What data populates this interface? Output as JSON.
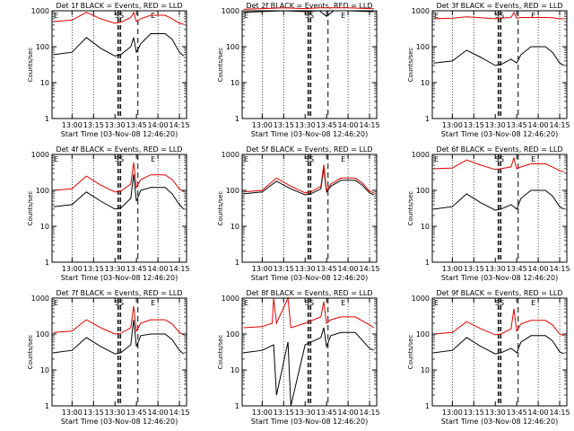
{
  "colors": {
    "events": "#000000",
    "lld": "#e00000",
    "background": "#ffffff"
  },
  "common": {
    "xlabel": "Start Time (03-Nov-08 12:46:20)",
    "ylabel": "Counts/sec",
    "x_ticks": [
      "13:00",
      "13:15",
      "13:30",
      "13:45",
      "14:00",
      "14:15"
    ],
    "y_ticks": [
      "1",
      "10",
      "100",
      "1000"
    ],
    "markers": {
      "left": "E",
      "center": "SS",
      "right": "E"
    }
  },
  "chart_data": [
    {
      "type": "line",
      "title": "Det 1f BLACK = Events, RED = LLD",
      "xlabel": "Start Time (03-Nov-08 12:46:20)",
      "ylabel": "Counts/sec",
      "ylim": [
        1,
        1000
      ],
      "log_y": true,
      "series": [
        {
          "color": "#000000",
          "x": [
            "12:47",
            "13:00",
            "13:10",
            "13:20",
            "13:30",
            "13:34",
            "13:41",
            "13:43",
            "13:45",
            "13:48",
            "13:55",
            "14:05",
            "14:10",
            "14:15",
            "14:18"
          ],
          "values": [
            60,
            70,
            180,
            90,
            55,
            60,
            100,
            180,
            70,
            120,
            230,
            230,
            160,
            70,
            55
          ]
        },
        {
          "color": "#e00000",
          "x": [
            "12:47",
            "13:00",
            "13:10",
            "13:20",
            "13:30",
            "13:34",
            "13:41",
            "13:43",
            "13:45",
            "13:48",
            "13:55",
            "14:05",
            "14:10",
            "14:15",
            "14:18"
          ],
          "values": [
            500,
            550,
            900,
            600,
            450,
            480,
            650,
            900,
            500,
            600,
            750,
            750,
            600,
            450,
            420
          ]
        }
      ]
    },
    {
      "type": "line",
      "title": "Det 2f BLACK = Events, RED = LLD",
      "xlabel": "Start Time (03-Nov-08 12:46:20)",
      "ylabel": "Counts/sec",
      "ylim": [
        1,
        1000
      ],
      "log_y": true,
      "series": [
        {
          "color": "#000000",
          "x": [
            "12:47",
            "13:00",
            "13:15",
            "13:30",
            "13:40",
            "13:45",
            "13:50",
            "14:00",
            "14:15",
            "14:18"
          ],
          "values": [
            900,
            950,
            1000,
            950,
            1000,
            700,
            1000,
            1000,
            950,
            950
          ]
        },
        {
          "color": "#e00000",
          "x": [
            "12:47",
            "13:00",
            "13:15",
            "13:30",
            "13:40",
            "13:45",
            "13:50",
            "14:00",
            "14:15",
            "14:18"
          ],
          "values": [
            1100,
            1150,
            1200,
            1150,
            1200,
            1200,
            1200,
            1200,
            1150,
            1150
          ]
        }
      ]
    },
    {
      "type": "line",
      "title": "Det 3f BLACK = Events, RED = LLD",
      "xlabel": "Start Time (03-Nov-08 12:46:20)",
      "ylabel": "Counts/sec",
      "ylim": [
        1,
        1000
      ],
      "log_y": true,
      "series": [
        {
          "color": "#000000",
          "x": [
            "12:47",
            "13:00",
            "13:10",
            "13:20",
            "13:30",
            "13:34",
            "13:41",
            "13:45",
            "13:48",
            "13:55",
            "14:05",
            "14:10",
            "14:15",
            "14:18"
          ],
          "values": [
            35,
            40,
            80,
            50,
            30,
            32,
            45,
            35,
            60,
            100,
            100,
            70,
            35,
            30
          ]
        },
        {
          "color": "#e00000",
          "x": [
            "12:47",
            "13:00",
            "13:10",
            "13:20",
            "13:30",
            "13:34",
            "13:41",
            "13:43",
            "13:45",
            "13:48",
            "13:55",
            "14:05",
            "14:10",
            "14:15",
            "14:18"
          ],
          "values": [
            600,
            620,
            680,
            640,
            600,
            620,
            650,
            900,
            620,
            650,
            650,
            650,
            640,
            600,
            600
          ]
        }
      ]
    },
    {
      "type": "line",
      "title": "Det 4f BLACK = Events, RED = LLD",
      "xlabel": "Start Time (03-Nov-08 12:46:20)",
      "ylabel": "Counts/sec",
      "ylim": [
        1,
        1000
      ],
      "log_y": true,
      "series": [
        {
          "color": "#000000",
          "x": [
            "12:47",
            "13:00",
            "13:10",
            "13:20",
            "13:30",
            "13:34",
            "13:41",
            "13:43",
            "13:45",
            "13:48",
            "13:55",
            "14:05",
            "14:10",
            "14:15",
            "14:18"
          ],
          "values": [
            35,
            40,
            90,
            50,
            30,
            32,
            60,
            280,
            50,
            100,
            120,
            120,
            80,
            40,
            30
          ]
        },
        {
          "color": "#e00000",
          "x": [
            "12:47",
            "13:00",
            "13:10",
            "13:20",
            "13:30",
            "13:34",
            "13:41",
            "13:43",
            "13:45",
            "13:48",
            "13:55",
            "14:05",
            "14:10",
            "14:15",
            "14:18"
          ],
          "values": [
            100,
            110,
            250,
            140,
            90,
            95,
            150,
            600,
            120,
            200,
            270,
            270,
            200,
            110,
            90
          ]
        }
      ]
    },
    {
      "type": "line",
      "title": "Det 5f BLACK = Events, RED = LLD",
      "xlabel": "Start Time (03-Nov-08 12:46:20)",
      "ylabel": "Counts/sec",
      "ylim": [
        1,
        1000
      ],
      "log_y": true,
      "series": [
        {
          "color": "#000000",
          "x": [
            "12:47",
            "13:00",
            "13:10",
            "13:20",
            "13:30",
            "13:34",
            "13:41",
            "13:43",
            "13:45",
            "13:48",
            "13:55",
            "14:05",
            "14:10",
            "14:15",
            "14:18"
          ],
          "values": [
            80,
            90,
            180,
            110,
            75,
            80,
            110,
            420,
            90,
            130,
            190,
            190,
            140,
            85,
            75
          ]
        },
        {
          "color": "#e00000",
          "x": [
            "12:47",
            "13:00",
            "13:10",
            "13:20",
            "13:30",
            "13:34",
            "13:41",
            "13:43",
            "13:45",
            "13:48",
            "13:55",
            "14:05",
            "14:10",
            "14:15",
            "14:18"
          ],
          "values": [
            90,
            100,
            220,
            130,
            85,
            90,
            130,
            520,
            100,
            150,
            220,
            220,
            160,
            95,
            85
          ]
        }
      ]
    },
    {
      "type": "line",
      "title": "Det 6f BLACK = Events, RED = LLD",
      "xlabel": "Start Time (03-Nov-08 12:46:20)",
      "ylabel": "Counts/sec",
      "ylim": [
        1,
        1000
      ],
      "log_y": true,
      "series": [
        {
          "color": "#000000",
          "x": [
            "12:47",
            "13:00",
            "13:10",
            "13:20",
            "13:30",
            "13:34",
            "13:41",
            "13:45",
            "13:48",
            "13:55",
            "14:05",
            "14:10",
            "14:15",
            "14:18"
          ],
          "values": [
            30,
            35,
            80,
            45,
            28,
            30,
            40,
            30,
            60,
            100,
            100,
            70,
            35,
            30
          ]
        },
        {
          "color": "#e00000",
          "x": [
            "12:47",
            "13:00",
            "13:10",
            "13:20",
            "13:30",
            "13:34",
            "13:41",
            "13:43",
            "13:45",
            "13:48",
            "13:55",
            "14:05",
            "14:10",
            "14:15",
            "14:18"
          ],
          "values": [
            400,
            420,
            700,
            500,
            380,
            400,
            450,
            800,
            400,
            450,
            550,
            550,
            450,
            350,
            330
          ]
        }
      ]
    },
    {
      "type": "line",
      "title": "Det 7f BLACK = Events, RED = LLD",
      "xlabel": "Start Time (03-Nov-08 12:46:20)",
      "ylabel": "Counts/sec",
      "ylim": [
        1,
        1000
      ],
      "log_y": true,
      "series": [
        {
          "color": "#000000",
          "x": [
            "12:47",
            "13:00",
            "13:10",
            "13:20",
            "13:30",
            "13:34",
            "13:41",
            "13:43",
            "13:45",
            "13:48",
            "13:55",
            "14:05",
            "14:10",
            "14:15",
            "14:18"
          ],
          "values": [
            30,
            35,
            80,
            45,
            28,
            30,
            50,
            250,
            45,
            90,
            100,
            100,
            70,
            35,
            28
          ]
        },
        {
          "color": "#e00000",
          "x": [
            "12:47",
            "13:00",
            "13:10",
            "13:20",
            "13:30",
            "13:34",
            "13:41",
            "13:43",
            "13:45",
            "13:48",
            "13:55",
            "14:05",
            "14:10",
            "14:15",
            "14:18"
          ],
          "values": [
            110,
            120,
            250,
            150,
            100,
            105,
            150,
            600,
            120,
            200,
            250,
            250,
            190,
            110,
            95
          ]
        }
      ]
    },
    {
      "type": "line",
      "title": "Det 8f BLACK = Events, RED = LLD",
      "xlabel": "Start Time (03-Nov-08 12:46:20)",
      "ylabel": "Counts/sec",
      "ylim": [
        1,
        1000
      ],
      "log_y": true,
      "series": [
        {
          "color": "#000000",
          "x": [
            "12:47",
            "13:00",
            "13:08",
            "13:10",
            "13:18",
            "13:20",
            "13:30",
            "13:41",
            "13:43",
            "13:45",
            "13:48",
            "13:55",
            "14:05",
            "14:15",
            "14:18"
          ],
          "values": [
            30,
            35,
            50,
            2,
            60,
            1,
            50,
            80,
            150,
            45,
            90,
            110,
            110,
            40,
            35
          ]
        },
        {
          "color": "#e00000",
          "x": [
            "12:47",
            "13:00",
            "13:07",
            "13:08",
            "13:10",
            "13:18",
            "13:20",
            "13:30",
            "13:41",
            "13:43",
            "13:45",
            "13:48",
            "13:55",
            "14:05",
            "14:15",
            "14:18"
          ],
          "values": [
            150,
            160,
            200,
            1000,
            200,
            1000,
            150,
            200,
            300,
            800,
            200,
            250,
            300,
            300,
            180,
            150
          ]
        }
      ]
    },
    {
      "type": "line",
      "title": "Det 9f BLACK = Events, RED = LLD",
      "xlabel": "Start Time (03-Nov-08 12:46:20)",
      "ylabel": "Counts/sec",
      "ylim": [
        1,
        1000
      ],
      "log_y": true,
      "series": [
        {
          "color": "#000000",
          "x": [
            "12:47",
            "13:00",
            "13:10",
            "13:20",
            "13:30",
            "13:34",
            "13:41",
            "13:45",
            "13:48",
            "13:55",
            "14:05",
            "14:10",
            "14:15",
            "14:18"
          ],
          "values": [
            30,
            35,
            80,
            45,
            28,
            30,
            40,
            30,
            60,
            90,
            90,
            65,
            32,
            28
          ]
        },
        {
          "color": "#e00000",
          "x": [
            "12:47",
            "13:00",
            "13:10",
            "13:20",
            "13:30",
            "13:34",
            "13:41",
            "13:43",
            "13:45",
            "13:48",
            "13:55",
            "14:05",
            "14:10",
            "14:15",
            "14:18"
          ],
          "values": [
            100,
            110,
            220,
            140,
            95,
            100,
            140,
            500,
            120,
            190,
            240,
            240,
            180,
            100,
            90
          ]
        }
      ]
    }
  ]
}
